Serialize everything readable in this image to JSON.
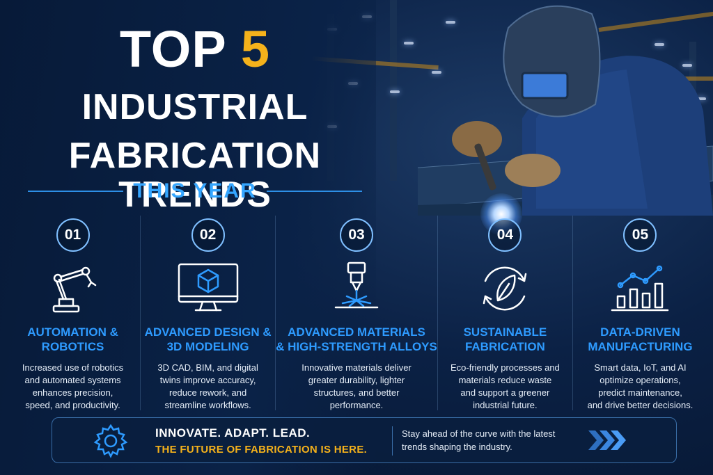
{
  "header": {
    "title_top": "TOP",
    "title_number": "5",
    "title_line2": "INDUSTRIAL",
    "title_line3": "FABRICATION TRENDS",
    "subtitle": "THIS YEAR"
  },
  "trends": [
    {
      "number": "01",
      "icon": "robot-arm-icon",
      "title": [
        "AUTOMATION &",
        "ROBOTICS"
      ],
      "description": [
        "Increased use of robotics",
        "and automated systems",
        "enhances precision,",
        "speed, and productivity."
      ]
    },
    {
      "number": "02",
      "icon": "monitor-cube-icon",
      "title": [
        "ADVANCED DESIGN &",
        "3D MODELING"
      ],
      "description": [
        "3D CAD, BIM, and digital",
        "twins improve accuracy,",
        "reduce rework, and",
        "streamline workflows."
      ]
    },
    {
      "number": "03",
      "icon": "laser-cutter-icon",
      "title": [
        "ADVANCED MATERIALS",
        "& HIGH-STRENGTH ALLOYS"
      ],
      "description": [
        "Innovative materials deliver",
        "greater durability, lighter",
        "structures, and better",
        "performance."
      ]
    },
    {
      "number": "04",
      "icon": "leaf-recycle-icon",
      "title": [
        "SUSTAINABLE",
        "FABRICATION"
      ],
      "description": [
        "Eco-friendly processes and",
        "materials reduce waste",
        "and support a greener",
        "industrial future."
      ]
    },
    {
      "number": "05",
      "icon": "bar-line-chart-icon",
      "title": [
        "DATA-DRIVEN",
        "MANUFACTURING"
      ],
      "description": [
        "Smart data, IoT, and AI",
        "optimize operations,",
        "predict maintenance,",
        "and drive better decisions."
      ]
    }
  ],
  "footer": {
    "icon": "gear-icon",
    "line1": "INNOVATE. ADAPT. LEAD.",
    "line2": "THE FUTURE OF FABRICATION IS HERE.",
    "text": [
      "Stay ahead of the curve with the latest",
      "trends shaping the industry."
    ],
    "arrow_icon": "chevrons-right-icon"
  },
  "colors": {
    "accent_yellow": "#f5b21b",
    "accent_blue": "#2e9bff",
    "background": "#06152e"
  }
}
